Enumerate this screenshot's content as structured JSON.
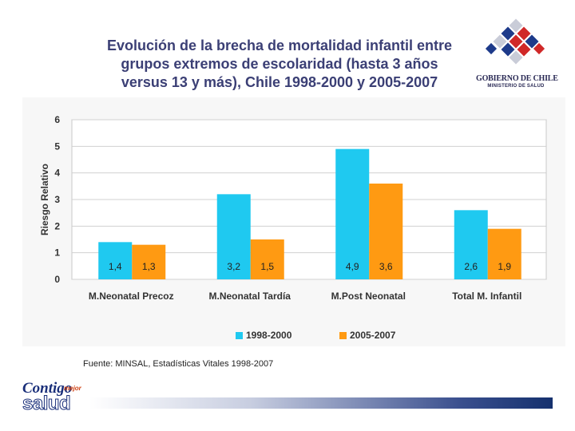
{
  "title_lines": [
    "Evolución de la brecha de mortalidad infantil entre",
    "grupos extremos de escolaridad (hasta 3 años",
    "versus 13 y más), Chile 1998-2000 y 2005-2007"
  ],
  "logo": {
    "name": "GOBIERNO DE CHILE",
    "subtitle": "MINISTERIO DE SALUD"
  },
  "chart_data": {
    "type": "bar",
    "title": "",
    "xlabel": "",
    "ylabel": "Riesgo Relativo",
    "ylim": [
      0,
      6
    ],
    "yticks": [
      "0",
      "1",
      "2",
      "3",
      "4",
      "5",
      "6"
    ],
    "categories": [
      "M.Neonatal Precoz",
      "M.Neonatal Tardía",
      "M.Post Neonatal",
      "Total M. Infantil"
    ],
    "series": [
      {
        "name": "1998-2000",
        "color": "#1fc9f0",
        "values": [
          1.4,
          3.2,
          4.9,
          2.6
        ],
        "labels": [
          "1,4",
          "3,2",
          "4,9",
          "2,6"
        ]
      },
      {
        "name": "2005-2007",
        "color": "#ff9a12",
        "values": [
          1.3,
          1.5,
          3.6,
          1.9
        ],
        "labels": [
          "1,3",
          "1,5",
          "3,6",
          "1,9"
        ]
      }
    ],
    "grid": true,
    "legend": "bottom-center"
  },
  "source": "Fuente: MINSAL, Estadísticas Vitales 1998-2007",
  "brand": {
    "top": "Contigo",
    "mid": "mejor",
    "bottom": "salud"
  }
}
